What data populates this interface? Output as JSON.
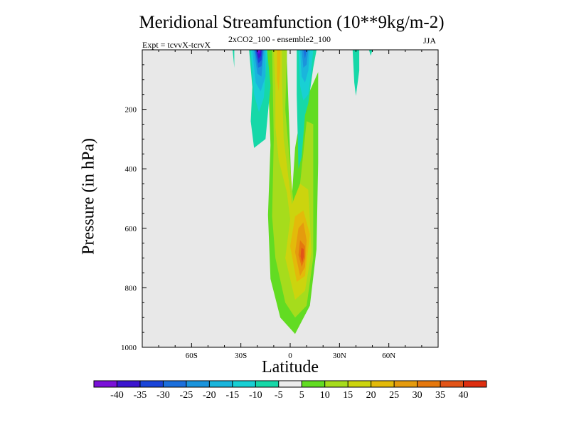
{
  "chart_data": {
    "type": "contour",
    "title": "Meridional Streamfunction (10**9kg/m-2)",
    "subtitle_left": "Expt = tcvvX-tcrvX",
    "subtitle_center": "2xCO2_100 - ensemble2_100",
    "subtitle_right": "JJA",
    "xlabel": "Latitude",
    "ylabel": "Pressure (in hPa)",
    "xlim": [
      -90,
      90
    ],
    "ylim": [
      1000,
      0
    ],
    "y_inverted": true,
    "x_ticks": [
      {
        "value": -60,
        "label": "60S"
      },
      {
        "value": -30,
        "label": "30S"
      },
      {
        "value": 0,
        "label": "0"
      },
      {
        "value": 30,
        "label": "30N"
      },
      {
        "value": 60,
        "label": "60N"
      }
    ],
    "y_ticks": [
      {
        "value": 200,
        "label": "200"
      },
      {
        "value": 400,
        "label": "400"
      },
      {
        "value": 600,
        "label": "600"
      },
      {
        "value": 800,
        "label": "800"
      },
      {
        "value": 1000,
        "label": "1000"
      }
    ],
    "background_color": "#e8e8e8",
    "colorbar": {
      "levels": [
        "-40",
        "-35",
        "-30",
        "-25",
        "-20",
        "-15",
        "-10",
        "-5",
        "5",
        "10",
        "15",
        "20",
        "25",
        "30",
        "35",
        "40"
      ],
      "colors": [
        "#7a11d8",
        "#3c16cf",
        "#1a44d8",
        "#1b6fdc",
        "#1b94dc",
        "#1ab5dc",
        "#18d0d4",
        "#16d8a8",
        "#ececec",
        "#62dc22",
        "#a6dc1c",
        "#ccd40e",
        "#e3ba0a",
        "#e59b0e",
        "#e5780e",
        "#e25418",
        "#de2e10"
      ]
    },
    "regions": [
      {
        "level": "5 to 10",
        "color": "#62dc22",
        "polygon": [
          [
            -14,
            1
          ],
          [
            -12,
            320
          ],
          [
            -13.5,
            555
          ],
          [
            -12,
            770
          ],
          [
            -6,
            900
          ],
          [
            3,
            955
          ],
          [
            12,
            860
          ],
          [
            16,
            670
          ],
          [
            17,
            380
          ],
          [
            17,
            75
          ],
          [
            7,
            200
          ],
          [
            3,
            330
          ],
          [
            1,
            500
          ],
          [
            -2,
            40
          ],
          [
            -2,
            1
          ]
        ]
      },
      {
        "level": "5 to 10",
        "color": "#62dc22",
        "polygon": [
          [
            -22,
            1
          ],
          [
            -22,
            20
          ],
          [
            -21,
            1
          ]
        ]
      },
      {
        "level": "5 to 10",
        "color": "#62dc22",
        "polygon": [
          [
            -13.5,
            1
          ],
          [
            -13,
            40
          ],
          [
            -12,
            1
          ]
        ]
      },
      {
        "level": "10 to 15",
        "color": "#a6dc1c",
        "polygon": [
          [
            -11,
            1
          ],
          [
            -10,
            300
          ],
          [
            -11,
            560
          ],
          [
            -9,
            700
          ],
          [
            -3,
            850
          ],
          [
            3,
            900
          ],
          [
            10,
            860
          ],
          [
            14,
            700
          ],
          [
            14,
            250
          ],
          [
            10,
            240
          ],
          [
            6,
            450
          ],
          [
            2,
            520
          ],
          [
            -3,
            200
          ],
          [
            -2,
            1
          ]
        ]
      },
      {
        "level": "15 to 20",
        "color": "#ccd40e",
        "polygon": [
          [
            -10,
            1
          ],
          [
            -9,
            120
          ],
          [
            -9,
            260
          ],
          [
            -7,
            370
          ],
          [
            -2,
            480
          ],
          [
            0,
            570
          ],
          [
            -3,
            700
          ],
          [
            3,
            840
          ],
          [
            9,
            810
          ],
          [
            13,
            680
          ],
          [
            11,
            470
          ],
          [
            6,
            450
          ],
          [
            1,
            520
          ],
          [
            -4,
            300
          ],
          [
            -5,
            100
          ],
          [
            -5,
            1
          ]
        ]
      },
      {
        "level": "20 to 25",
        "color": "#e3ba0a",
        "polygon": [
          [
            -8,
            1
          ],
          [
            -8,
            100
          ],
          [
            -7,
            140
          ],
          [
            -6,
            60
          ],
          [
            -6,
            1
          ]
        ]
      },
      {
        "level": "20 to 25",
        "color": "#e3ba0a",
        "polygon": [
          [
            3,
            560
          ],
          [
            0,
            660
          ],
          [
            4,
            780
          ],
          [
            9,
            760
          ],
          [
            12,
            620
          ],
          [
            8,
            540
          ]
        ]
      },
      {
        "level": "25 to 30",
        "color": "#e59b0e",
        "polygon": [
          [
            5,
            600
          ],
          [
            3,
            680
          ],
          [
            6,
            760
          ],
          [
            9,
            730
          ],
          [
            10,
            640
          ],
          [
            8,
            580
          ]
        ]
      },
      {
        "level": "30 to 35",
        "color": "#e5780e",
        "polygon": [
          [
            6,
            640
          ],
          [
            5,
            690
          ],
          [
            7,
            730
          ],
          [
            9,
            700
          ],
          [
            9,
            660
          ]
        ]
      },
      {
        "level": "35 to 40",
        "color": "#e25418",
        "polygon": [
          [
            6.8,
            665
          ],
          [
            6.3,
            695
          ],
          [
            7.3,
            715
          ],
          [
            8.3,
            695
          ],
          [
            8.2,
            670
          ]
        ]
      },
      {
        "level": "-10 to -5",
        "color": "#16d8a8",
        "polygon": [
          [
            -35,
            1
          ],
          [
            -34,
            60
          ],
          [
            -34,
            1
          ]
        ]
      },
      {
        "level": "-10 to -5",
        "color": "#16d8a8",
        "polygon": [
          [
            -25,
            1
          ],
          [
            -23,
            125
          ],
          [
            -24,
            240
          ],
          [
            -22,
            330
          ],
          [
            -15,
            300
          ],
          [
            -12,
            120
          ],
          [
            -14,
            1
          ]
        ]
      },
      {
        "level": "-10 to -5",
        "color": "#16d8a8",
        "polygon": [
          [
            4,
            1
          ],
          [
            4,
            150
          ],
          [
            5,
            400
          ],
          [
            7,
            360
          ],
          [
            9,
            220
          ],
          [
            11,
            180
          ],
          [
            14,
            60
          ],
          [
            16,
            1
          ]
        ]
      },
      {
        "level": "-10 to -5",
        "color": "#16d8a8",
        "polygon": [
          [
            38,
            1
          ],
          [
            39,
            110
          ],
          [
            40,
            155
          ],
          [
            42,
            70
          ],
          [
            42,
            1
          ]
        ]
      },
      {
        "level": "-10 to -5",
        "color": "#16d8a8",
        "polygon": [
          [
            48,
            1
          ],
          [
            49,
            20
          ],
          [
            50,
            1
          ]
        ]
      },
      {
        "level": "-15 to -10",
        "color": "#18d0d4",
        "polygon": [
          [
            -24,
            1
          ],
          [
            -22,
            150
          ],
          [
            -19,
            210
          ],
          [
            -16,
            160
          ],
          [
            -14,
            1
          ]
        ]
      },
      {
        "level": "-15 to -10",
        "color": "#18d0d4",
        "polygon": [
          [
            5,
            1
          ],
          [
            6,
            120
          ],
          [
            8,
            170
          ],
          [
            11,
            150
          ],
          [
            13,
            60
          ],
          [
            14,
            1
          ]
        ]
      },
      {
        "level": "-20 to -15",
        "color": "#1ab5dc",
        "polygon": [
          [
            -23,
            1
          ],
          [
            -21,
            110
          ],
          [
            -18,
            140
          ],
          [
            -15,
            90
          ],
          [
            -15,
            1
          ]
        ]
      },
      {
        "level": "-20 to -15",
        "color": "#1ab5dc",
        "polygon": [
          [
            6,
            1
          ],
          [
            7,
            90
          ],
          [
            9,
            110
          ],
          [
            11,
            70
          ],
          [
            12,
            1
          ]
        ]
      },
      {
        "level": "-25 to -20",
        "color": "#1b94dc",
        "polygon": [
          [
            -22,
            1
          ],
          [
            -20,
            80
          ],
          [
            -17.5,
            90
          ],
          [
            -16,
            1
          ]
        ]
      },
      {
        "level": "-25 to -20",
        "color": "#1b94dc",
        "polygon": [
          [
            7,
            1
          ],
          [
            8,
            60
          ],
          [
            10,
            50
          ],
          [
            11,
            1
          ]
        ]
      },
      {
        "level": "-30 to -25",
        "color": "#1b6fdc",
        "polygon": [
          [
            -21.5,
            1
          ],
          [
            -19.5,
            60
          ],
          [
            -17.5,
            55
          ],
          [
            -16.5,
            1
          ]
        ]
      },
      {
        "level": "-30 to -25",
        "color": "#1b6fdc",
        "polygon": [
          [
            8,
            1
          ],
          [
            9,
            30
          ],
          [
            10,
            1
          ]
        ]
      },
      {
        "level": "-35 to -30",
        "color": "#1a44d8",
        "polygon": [
          [
            -21,
            1
          ],
          [
            -19.3,
            45
          ],
          [
            -17.5,
            35
          ],
          [
            -17,
            1
          ]
        ]
      },
      {
        "level": "-40 to -35",
        "color": "#3c16cf",
        "polygon": [
          [
            -20.5,
            1
          ],
          [
            -19.2,
            30
          ],
          [
            -17.8,
            20
          ],
          [
            -17.5,
            1
          ]
        ]
      },
      {
        "level": "below -40",
        "color": "#7a11d8",
        "polygon": [
          [
            -20,
            1
          ],
          [
            -19,
            15
          ],
          [
            -18,
            1
          ]
        ]
      }
    ]
  }
}
